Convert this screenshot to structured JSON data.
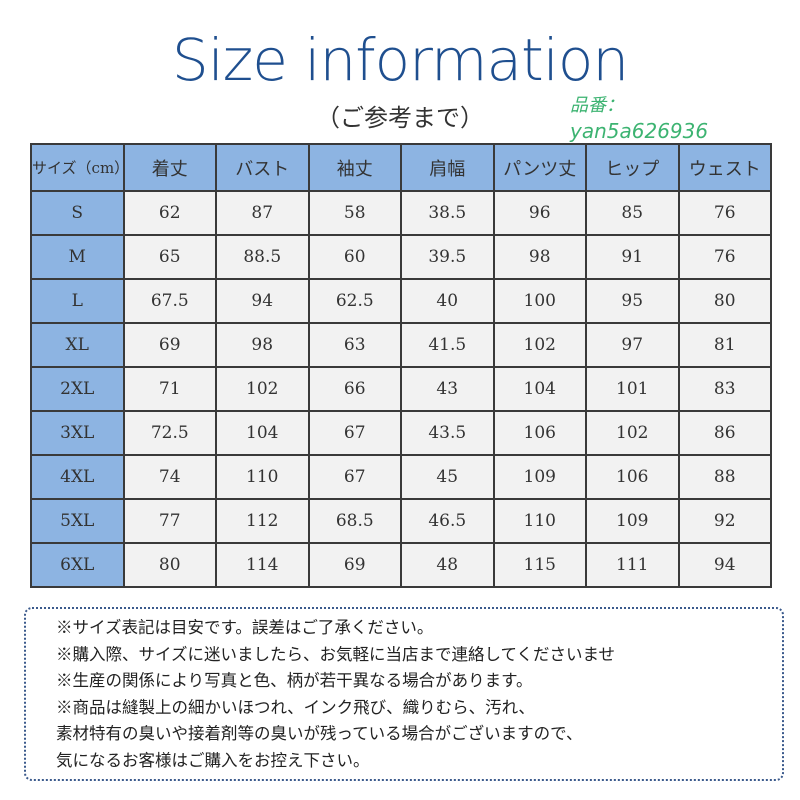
{
  "title": "Size information",
  "subtitle": "（ご参考まで）",
  "watermark": {
    "label": "品番：",
    "code": "yan5a626936",
    "color": "#3cb371"
  },
  "colors": {
    "title": "#1f4f8f",
    "header_fill": "#8db4e2",
    "cell_fill": "#f2f2f2"
  },
  "table": {
    "size_header": "サイズ（cm）",
    "columns": [
      "着丈",
      "バスト",
      "袖丈",
      "肩幅",
      "パンツ丈",
      "ヒップ",
      "ウェスト"
    ],
    "rows": [
      {
        "size": "S",
        "values": [
          "62",
          "87",
          "58",
          "38.5",
          "96",
          "85",
          "76"
        ]
      },
      {
        "size": "M",
        "values": [
          "65",
          "88.5",
          "60",
          "39.5",
          "98",
          "91",
          "76"
        ]
      },
      {
        "size": "L",
        "values": [
          "67.5",
          "94",
          "62.5",
          "40",
          "100",
          "95",
          "80"
        ]
      },
      {
        "size": "XL",
        "values": [
          "69",
          "98",
          "63",
          "41.5",
          "102",
          "97",
          "81"
        ]
      },
      {
        "size": "2XL",
        "values": [
          "71",
          "102",
          "66",
          "43",
          "104",
          "101",
          "83"
        ]
      },
      {
        "size": "3XL",
        "values": [
          "72.5",
          "104",
          "67",
          "43.5",
          "106",
          "102",
          "86"
        ]
      },
      {
        "size": "4XL",
        "values": [
          "74",
          "110",
          "67",
          "45",
          "109",
          "106",
          "88"
        ]
      },
      {
        "size": "5XL",
        "values": [
          "77",
          "112",
          "68.5",
          "46.5",
          "110",
          "109",
          "92"
        ]
      },
      {
        "size": "6XL",
        "values": [
          "80",
          "114",
          "69",
          "48",
          "115",
          "111",
          "94"
        ]
      }
    ]
  },
  "notes": [
    "※サイズ表記は目安です。誤差はご了承ください。",
    "※購入際、サイズに迷いましたら、お気軽に当店まで連絡してくださいませ",
    "※生産の関係により写真と色、柄が若干異なる場合があります。",
    "※商品は縫製上の細かいほつれ、インク飛び、織りむら、汚れ、",
    "素材特有の臭いや接着剤等の臭いが残っている場合がございますので、",
    "気になるお客様はご購入をお控え下さい。"
  ]
}
